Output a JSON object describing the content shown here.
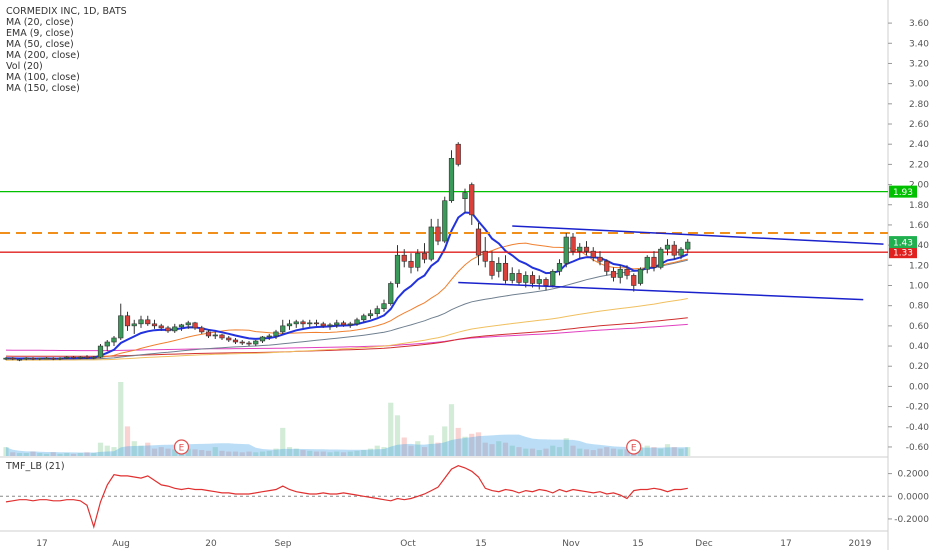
{
  "chart_data": {
    "type": "candlestick",
    "title": "CORMEDIX INC, 1D, BATS",
    "legend": [
      "MA (20, close)",
      "EMA (9, close)",
      "MA (50, close)",
      "MA (200, close)",
      "Vol (20)",
      "MA (100, close)",
      "MA (150, close)"
    ],
    "price_axis_ticks": [
      "3.60",
      "3.40",
      "3.20",
      "3.00",
      "2.80",
      "2.60",
      "2.40",
      "2.20",
      "2.00",
      "1.80",
      "1.60",
      "1.40",
      "1.20",
      "1.00",
      "0.80",
      "0.60",
      "0.40",
      "0.20",
      "0.00",
      "-0.20",
      "-0.40",
      "-0.60"
    ],
    "price_range": [
      -0.64,
      3.7
    ],
    "x_axis_labels": [
      "17",
      "Aug",
      "20",
      "Sep",
      "Oct",
      "15",
      "Nov",
      "15",
      "Dec",
      "17",
      "2019"
    ],
    "horizontal_levels": [
      {
        "value": 1.93,
        "label": "1.93",
        "color": "#00c000",
        "style": "solid"
      },
      {
        "value": 1.33,
        "label": "1.33",
        "color": "#e0201e",
        "style": "solid"
      },
      {
        "value": 1.52,
        "label": "",
        "color": "#f0901a",
        "style": "dashed"
      }
    ],
    "last_price": {
      "value": 1.43,
      "label": "1.43",
      "color": "#20b050"
    },
    "event_markers": [
      "E",
      "E"
    ],
    "ohlc": [
      [
        0.27,
        0.29,
        0.26,
        0.28
      ],
      [
        0.28,
        0.29,
        0.26,
        0.27
      ],
      [
        0.27,
        0.28,
        0.25,
        0.27
      ],
      [
        0.27,
        0.29,
        0.26,
        0.28
      ],
      [
        0.28,
        0.29,
        0.26,
        0.27
      ],
      [
        0.27,
        0.28,
        0.26,
        0.28
      ],
      [
        0.28,
        0.29,
        0.27,
        0.28
      ],
      [
        0.28,
        0.29,
        0.26,
        0.27
      ],
      [
        0.27,
        0.29,
        0.26,
        0.28
      ],
      [
        0.28,
        0.3,
        0.27,
        0.29
      ],
      [
        0.29,
        0.3,
        0.27,
        0.28
      ],
      [
        0.28,
        0.3,
        0.27,
        0.29
      ],
      [
        0.29,
        0.31,
        0.27,
        0.28
      ],
      [
        0.28,
        0.3,
        0.27,
        0.29
      ],
      [
        0.29,
        0.42,
        0.28,
        0.4
      ],
      [
        0.4,
        0.46,
        0.35,
        0.44
      ],
      [
        0.44,
        0.5,
        0.4,
        0.48
      ],
      [
        0.48,
        0.82,
        0.46,
        0.7
      ],
      [
        0.7,
        0.74,
        0.55,
        0.6
      ],
      [
        0.6,
        0.66,
        0.52,
        0.62
      ],
      [
        0.62,
        0.7,
        0.58,
        0.66
      ],
      [
        0.66,
        0.7,
        0.6,
        0.62
      ],
      [
        0.62,
        0.66,
        0.57,
        0.6
      ],
      [
        0.6,
        0.62,
        0.55,
        0.58
      ],
      [
        0.58,
        0.6,
        0.53,
        0.55
      ],
      [
        0.55,
        0.62,
        0.53,
        0.59
      ],
      [
        0.59,
        0.62,
        0.55,
        0.61
      ],
      [
        0.61,
        0.65,
        0.57,
        0.63
      ],
      [
        0.63,
        0.64,
        0.56,
        0.58
      ],
      [
        0.58,
        0.6,
        0.52,
        0.54
      ],
      [
        0.54,
        0.56,
        0.48,
        0.5
      ],
      [
        0.5,
        0.54,
        0.47,
        0.51
      ],
      [
        0.51,
        0.52,
        0.46,
        0.48
      ],
      [
        0.48,
        0.5,
        0.44,
        0.46
      ],
      [
        0.46,
        0.48,
        0.42,
        0.44
      ],
      [
        0.44,
        0.46,
        0.41,
        0.43
      ],
      [
        0.43,
        0.45,
        0.4,
        0.42
      ],
      [
        0.42,
        0.46,
        0.4,
        0.45
      ],
      [
        0.45,
        0.5,
        0.43,
        0.49
      ],
      [
        0.49,
        0.52,
        0.46,
        0.5
      ],
      [
        0.5,
        0.56,
        0.47,
        0.54
      ],
      [
        0.54,
        0.66,
        0.52,
        0.6
      ],
      [
        0.6,
        0.66,
        0.56,
        0.62
      ],
      [
        0.62,
        0.66,
        0.58,
        0.64
      ],
      [
        0.64,
        0.66,
        0.58,
        0.62
      ],
      [
        0.62,
        0.66,
        0.59,
        0.63
      ],
      [
        0.63,
        0.66,
        0.6,
        0.62
      ],
      [
        0.62,
        0.64,
        0.58,
        0.6
      ],
      [
        0.6,
        0.63,
        0.56,
        0.61
      ],
      [
        0.61,
        0.66,
        0.58,
        0.63
      ],
      [
        0.63,
        0.65,
        0.59,
        0.61
      ],
      [
        0.61,
        0.64,
        0.58,
        0.62
      ],
      [
        0.62,
        0.68,
        0.6,
        0.66
      ],
      [
        0.66,
        0.72,
        0.63,
        0.7
      ],
      [
        0.7,
        0.76,
        0.67,
        0.72
      ],
      [
        0.72,
        0.8,
        0.69,
        0.77
      ],
      [
        0.77,
        0.86,
        0.74,
        0.82
      ],
      [
        0.82,
        1.04,
        0.8,
        1.02
      ],
      [
        1.02,
        1.4,
        0.98,
        1.3
      ],
      [
        1.3,
        1.36,
        1.18,
        1.24
      ],
      [
        1.24,
        1.32,
        1.12,
        1.18
      ],
      [
        1.18,
        1.36,
        1.14,
        1.32
      ],
      [
        1.32,
        1.42,
        1.22,
        1.26
      ],
      [
        1.26,
        1.66,
        1.24,
        1.58
      ],
      [
        1.58,
        1.66,
        1.4,
        1.44
      ],
      [
        1.44,
        1.88,
        1.42,
        1.84
      ],
      [
        1.84,
        2.34,
        1.82,
        2.26
      ],
      [
        2.4,
        2.42,
        2.18,
        2.2
      ],
      [
        1.86,
        1.96,
        1.72,
        1.92
      ],
      [
        2.0,
        2.02,
        1.6,
        1.7
      ],
      [
        1.56,
        1.62,
        1.2,
        1.3
      ],
      [
        1.34,
        1.48,
        1.18,
        1.24
      ],
      [
        1.24,
        1.34,
        1.06,
        1.1
      ],
      [
        1.14,
        1.28,
        1.08,
        1.22
      ],
      [
        1.22,
        1.3,
        1.02,
        1.05
      ],
      [
        1.05,
        1.18,
        1.02,
        1.12
      ],
      [
        1.12,
        1.16,
        1.0,
        1.03
      ],
      [
        1.03,
        1.14,
        0.98,
        1.1
      ],
      [
        1.1,
        1.14,
        0.98,
        1.02
      ],
      [
        1.02,
        1.1,
        0.96,
        1.06
      ],
      [
        1.06,
        1.08,
        0.95,
        1.0
      ],
      [
        1.0,
        1.16,
        0.98,
        1.14
      ],
      [
        1.14,
        1.26,
        1.1,
        1.22
      ],
      [
        1.22,
        1.52,
        1.18,
        1.48
      ],
      [
        1.48,
        1.52,
        1.3,
        1.34
      ],
      [
        1.34,
        1.42,
        1.26,
        1.38
      ],
      [
        1.38,
        1.44,
        1.3,
        1.34
      ],
      [
        1.34,
        1.38,
        1.24,
        1.28
      ],
      [
        1.28,
        1.34,
        1.2,
        1.24
      ],
      [
        1.24,
        1.26,
        1.1,
        1.14
      ],
      [
        1.14,
        1.18,
        1.04,
        1.08
      ],
      [
        1.08,
        1.2,
        1.02,
        1.16
      ],
      [
        1.16,
        1.2,
        1.06,
        1.1
      ],
      [
        1.1,
        1.12,
        0.94,
        1.0
      ],
      [
        1.02,
        1.18,
        1.0,
        1.16
      ],
      [
        1.16,
        1.3,
        1.12,
        1.28
      ],
      [
        1.28,
        1.34,
        1.14,
        1.18
      ],
      [
        1.18,
        1.38,
        1.16,
        1.36
      ],
      [
        1.36,
        1.46,
        1.3,
        1.4
      ],
      [
        1.4,
        1.44,
        1.26,
        1.3
      ],
      [
        1.3,
        1.38,
        1.26,
        1.36
      ],
      [
        1.36,
        1.46,
        1.32,
        1.43
      ]
    ],
    "volume_rel": [
      0.12,
      0.05,
      0.04,
      0.04,
      0.06,
      0.04,
      0.03,
      0.05,
      0.03,
      0.04,
      0.03,
      0.04,
      0.05,
      0.04,
      0.18,
      0.14,
      0.12,
      1.0,
      0.4,
      0.2,
      0.14,
      0.18,
      0.1,
      0.12,
      0.1,
      0.09,
      0.08,
      0.1,
      0.09,
      0.08,
      0.07,
      0.12,
      0.07,
      0.06,
      0.06,
      0.05,
      0.06,
      0.05,
      0.06,
      0.07,
      0.1,
      0.38,
      0.12,
      0.1,
      0.08,
      0.07,
      0.06,
      0.06,
      0.05,
      0.06,
      0.05,
      0.06,
      0.07,
      0.08,
      0.1,
      0.14,
      0.12,
      0.72,
      0.55,
      0.25,
      0.14,
      0.2,
      0.12,
      0.28,
      0.18,
      0.4,
      0.7,
      0.38,
      0.26,
      0.3,
      0.32,
      0.18,
      0.16,
      0.2,
      0.18,
      0.14,
      0.12,
      0.1,
      0.1,
      0.08,
      0.1,
      0.14,
      0.12,
      0.24,
      0.14,
      0.1,
      0.09,
      0.08,
      0.1,
      0.12,
      0.1,
      0.09,
      0.09,
      0.1,
      0.12,
      0.14,
      0.12,
      0.1,
      0.16,
      0.12,
      0.1,
      0.12
    ],
    "resistance_trend": {
      "from": [
        75,
        1.59
      ],
      "to": [
        130,
        1.41
      ]
    },
    "support_trend": {
      "from": [
        67,
        1.03
      ],
      "to": [
        127,
        0.86
      ]
    },
    "tmf": {
      "title": "TMF_LB (21)",
      "ticks": [
        "0.2000",
        "0.0000",
        "-0.2000"
      ],
      "range": [
        -0.28,
        0.32
      ],
      "values": [
        -0.05,
        -0.04,
        -0.03,
        -0.03,
        -0.04,
        -0.03,
        -0.03,
        -0.04,
        -0.04,
        -0.03,
        -0.03,
        -0.04,
        -0.08,
        -0.27,
        -0.05,
        0.1,
        0.19,
        0.18,
        0.18,
        0.17,
        0.16,
        0.18,
        0.14,
        0.1,
        0.09,
        0.07,
        0.06,
        0.07,
        0.06,
        0.06,
        0.05,
        0.04,
        0.03,
        0.03,
        0.02,
        0.02,
        0.02,
        0.03,
        0.04,
        0.05,
        0.06,
        0.09,
        0.06,
        0.04,
        0.03,
        0.02,
        0.02,
        0.03,
        0.02,
        0.02,
        0.03,
        0.02,
        0.01,
        0.0,
        -0.01,
        -0.02,
        -0.03,
        -0.04,
        -0.02,
        -0.03,
        -0.02,
        0.0,
        0.02,
        0.05,
        0.08,
        0.16,
        0.24,
        0.27,
        0.25,
        0.22,
        0.17,
        0.07,
        0.05,
        0.04,
        0.06,
        0.05,
        0.03,
        0.05,
        0.04,
        0.06,
        0.05,
        0.03,
        0.06,
        0.04,
        0.06,
        0.05,
        0.04,
        0.03,
        0.04,
        0.02,
        0.03,
        0.01,
        -0.02,
        0.05,
        0.06,
        0.06,
        0.07,
        0.06,
        0.04,
        0.06,
        0.06,
        0.07
      ]
    }
  }
}
